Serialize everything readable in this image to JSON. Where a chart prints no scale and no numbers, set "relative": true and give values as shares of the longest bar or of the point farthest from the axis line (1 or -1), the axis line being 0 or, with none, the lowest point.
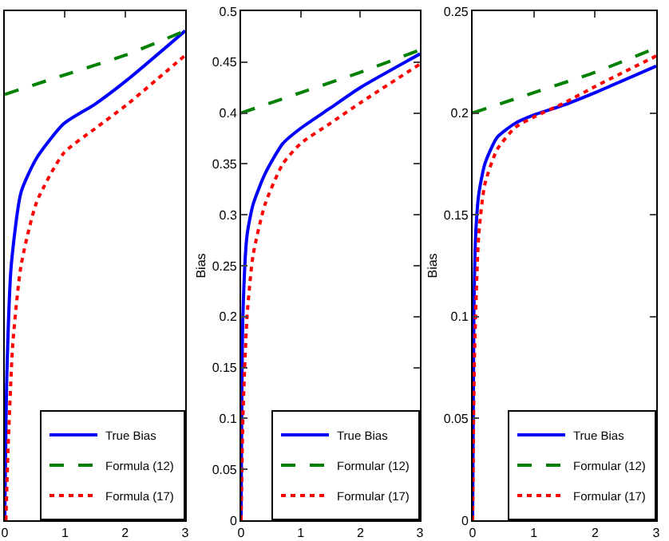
{
  "chart_data": [
    {
      "type": "line",
      "relative": true,
      "xlim": [
        0,
        3
      ],
      "xticks": [
        0,
        1,
        2,
        3
      ],
      "tick_labels": "x",
      "legend": "bottom right",
      "grid": false,
      "marker": "none",
      "series": [
        {
          "name": "True Bias",
          "color": "#0000ff",
          "line_style": "solid",
          "x": [
            0,
            0.035,
            0.107,
            0.27,
            0.53,
            0.98,
            1.5,
            2.04,
            3
          ],
          "values": [
            0,
            0.3,
            0.52,
            0.67,
            0.74,
            0.81,
            0.85,
            0.9,
            1
          ]
        },
        {
          "name": "Formula (12)",
          "color": "#008000",
          "line_style": "dashed",
          "x": [
            0,
            1,
            2,
            3
          ],
          "values": [
            0.87,
            0.91,
            0.95,
            1
          ]
        },
        {
          "name": "Formula (17)",
          "color": "#ff0000",
          "line_style": "dotted",
          "x": [
            0.018,
            0.053,
            0.133,
            0.27,
            0.53,
            0.98,
            1.5,
            2.04,
            3
          ],
          "values": [
            0,
            0.14,
            0.36,
            0.52,
            0.65,
            0.75,
            0.8,
            0.85,
            0.95
          ]
        }
      ]
    },
    {
      "type": "line",
      "ylabel": "Bias",
      "xlim": [
        0,
        3
      ],
      "xticks": [
        0,
        1,
        2,
        3
      ],
      "ylim": [
        0,
        0.5
      ],
      "yticks": [
        0,
        0.05,
        0.1,
        0.15,
        0.2,
        0.25,
        0.3,
        0.35,
        0.4,
        0.45,
        0.5
      ],
      "legend": "bottom right",
      "grid": false,
      "marker": "none",
      "series": [
        {
          "name": "True Bias",
          "color": "#0000ff",
          "line_style": "solid",
          "x": [
            0,
            0.03,
            0.1,
            0.2,
            0.4,
            0.7,
            1,
            1.5,
            2,
            3
          ],
          "values": [
            0,
            0.2,
            0.28,
            0.31,
            0.34,
            0.37,
            0.385,
            0.405,
            0.425,
            0.458
          ]
        },
        {
          "name": "Formular (12)",
          "color": "#008000",
          "line_style": "dashed",
          "x": [
            0,
            1,
            2,
            3
          ],
          "values": [
            0.4,
            0.42,
            0.44,
            0.462
          ]
        },
        {
          "name": "Formular (17)",
          "color": "#ff0000",
          "line_style": "dotted",
          "x": [
            0,
            0.03,
            0.1,
            0.2,
            0.4,
            0.7,
            1,
            1.5,
            2,
            3
          ],
          "values": [
            0,
            0.1,
            0.2,
            0.26,
            0.31,
            0.35,
            0.37,
            0.39,
            0.41,
            0.448
          ]
        }
      ]
    },
    {
      "type": "line",
      "ylabel": "Bias",
      "xlim": [
        0,
        3
      ],
      "xticks": [
        0,
        1,
        2,
        3
      ],
      "ylim": [
        0,
        0.25
      ],
      "yticks": [
        0,
        0.05,
        0.1,
        0.15,
        0.2,
        0.25
      ],
      "legend": "bottom right",
      "grid": false,
      "marker": "none",
      "series": [
        {
          "name": "True Bias",
          "color": "#0000ff",
          "line_style": "solid",
          "x": [
            0,
            0.02,
            0.05,
            0.1,
            0.2,
            0.4,
            0.7,
            1,
            1.5,
            2,
            3
          ],
          "values": [
            0,
            0.1,
            0.14,
            0.16,
            0.175,
            0.188,
            0.195,
            0.199,
            0.204,
            0.21,
            0.223
          ]
        },
        {
          "name": "Formular (12)",
          "color": "#008000",
          "line_style": "dashed",
          "x": [
            0,
            1,
            2,
            3
          ],
          "values": [
            0.2,
            0.21,
            0.22,
            0.232
          ]
        },
        {
          "name": "Formular (17)",
          "color": "#ff0000",
          "line_style": "dotted",
          "x": [
            0,
            0.03,
            0.1,
            0.2,
            0.4,
            0.7,
            1,
            1.5,
            2,
            3
          ],
          "values": [
            0,
            0.08,
            0.14,
            0.165,
            0.182,
            0.193,
            0.198,
            0.205,
            0.213,
            0.228
          ]
        }
      ]
    }
  ]
}
